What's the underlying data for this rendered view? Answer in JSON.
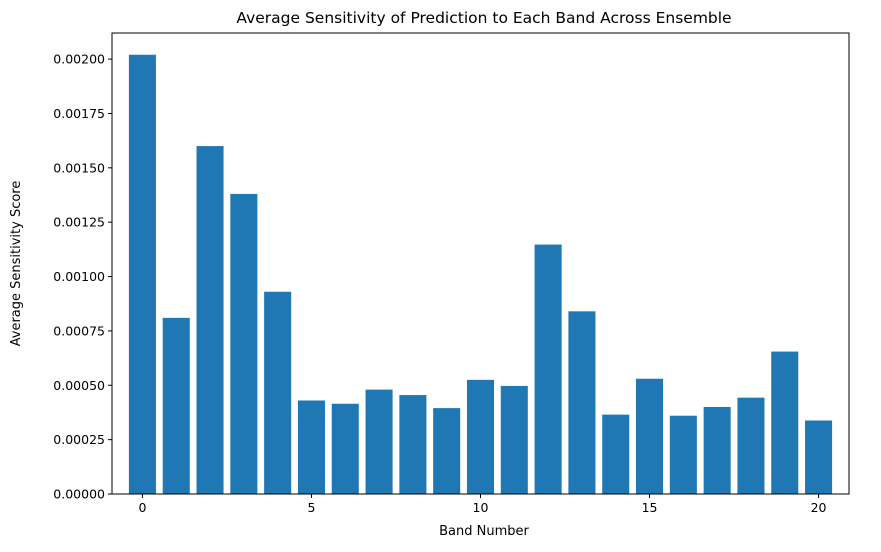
{
  "chart_data": {
    "type": "bar",
    "title": "Average Sensitivity of Prediction to Each Band Across Ensemble",
    "xlabel": "Band Number",
    "ylabel": "Average Sensitivity Score",
    "categories": [
      0,
      1,
      2,
      3,
      4,
      5,
      6,
      7,
      8,
      9,
      10,
      11,
      12,
      13,
      14,
      15,
      16,
      17,
      18,
      19,
      20
    ],
    "values": [
      0.00202,
      0.00081,
      0.0016,
      0.00138,
      0.00093,
      0.00043,
      0.000415,
      0.00048,
      0.000455,
      0.000395,
      0.000525,
      0.000497,
      0.001147,
      0.00084,
      0.000365,
      0.00053,
      0.00036,
      0.0004,
      0.000443,
      0.000655,
      0.000338
    ],
    "xlim": [
      -0.9,
      20.9
    ],
    "ylim": [
      0,
      0.00212
    ],
    "xticks": [
      0,
      5,
      10,
      15,
      20
    ],
    "xtick_labels": [
      "0",
      "5",
      "10",
      "15",
      "20"
    ],
    "yticks": [
      0,
      0.00025,
      0.0005,
      0.00075,
      0.001,
      0.00125,
      0.0015,
      0.00175,
      0.002
    ],
    "ytick_labels": [
      "0.00000",
      "0.00025",
      "0.00050",
      "0.00075",
      "0.00100",
      "0.00125",
      "0.00150",
      "0.00175",
      "0.00200"
    ],
    "bar_color": "#1f77b4",
    "grid": false,
    "legend": "none"
  }
}
